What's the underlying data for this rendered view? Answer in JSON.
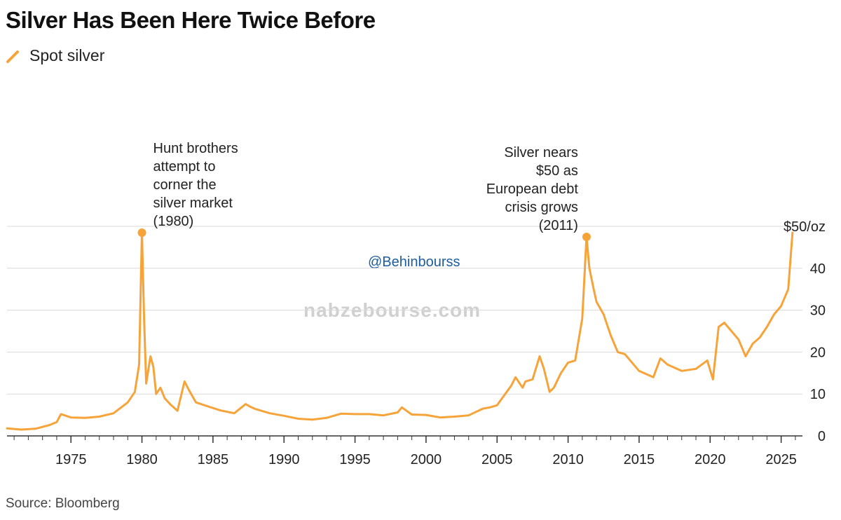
{
  "header": {
    "title": "Silver Has Been Here Twice Before"
  },
  "legend": {
    "label": "Spot silver"
  },
  "source": "Source: Bloomberg",
  "watermark": {
    "handle": "@Behinbourss",
    "site": "nabzebourse.com"
  },
  "colors": {
    "line": "#f6a43a",
    "grid": "#d9d9d9",
    "axis": "#333333"
  },
  "chart_data": {
    "type": "line",
    "series": [
      {
        "name": "Spot silver",
        "x": [
          1970.5,
          1971.5,
          1972.5,
          1973.5,
          1974.0,
          1974.3,
          1975,
          1976,
          1977,
          1978,
          1979,
          1979.5,
          1979.8,
          1980.0,
          1980.15,
          1980.3,
          1980.6,
          1980.8,
          1981.0,
          1981.3,
          1981.6,
          1982,
          1982.5,
          1983.0,
          1983.3,
          1983.8,
          1984.5,
          1985.5,
          1986.5,
          1987.3,
          1987.6,
          1988,
          1989,
          1990,
          1991,
          1992,
          1993,
          1994,
          1995,
          1996,
          1997,
          1998,
          1998.3,
          1999,
          2000,
          2001,
          2002,
          2003,
          2004,
          2004.5,
          2005,
          2006,
          2006.3,
          2006.8,
          2007,
          2007.5,
          2008.0,
          2008.3,
          2008.7,
          2009.0,
          2009.5,
          2010,
          2010.5,
          2011.0,
          2011.3,
          2011.5,
          2011.8,
          2012,
          2012.5,
          2013,
          2013.5,
          2014,
          2015,
          2016,
          2016.5,
          2017,
          2018,
          2019,
          2019.8,
          2020.2,
          2020.6,
          2021,
          2021.5,
          2022,
          2022.5,
          2023,
          2023.5,
          2024,
          2024.5,
          2025,
          2025.5,
          2025.8
        ],
        "y": [
          1.8,
          1.5,
          1.7,
          2.6,
          3.3,
          5.2,
          4.4,
          4.3,
          4.6,
          5.4,
          8.0,
          10.5,
          17.0,
          48.5,
          28.0,
          12.5,
          19.0,
          16.5,
          10.0,
          11.5,
          9.0,
          7.5,
          6.0,
          13.0,
          11.0,
          8.0,
          7.2,
          6.1,
          5.4,
          7.6,
          7.0,
          6.4,
          5.4,
          4.8,
          4.1,
          3.9,
          4.3,
          5.3,
          5.2,
          5.2,
          4.9,
          5.6,
          6.8,
          5.1,
          5.0,
          4.4,
          4.6,
          4.9,
          6.5,
          6.8,
          7.3,
          12.0,
          14.0,
          11.5,
          13.0,
          13.5,
          19.0,
          16.0,
          10.5,
          11.5,
          15.0,
          17.5,
          18.0,
          28.0,
          47.5,
          40.0,
          35.0,
          32.0,
          29.0,
          24.0,
          20.0,
          19.5,
          15.5,
          14.0,
          18.5,
          17.0,
          15.5,
          16.0,
          18.0,
          13.5,
          26.0,
          27.0,
          25.0,
          23.0,
          19.0,
          22.0,
          23.5,
          26.0,
          29.0,
          31.0,
          35.0,
          48.5
        ]
      }
    ],
    "xlim": [
      1970.5,
      2026.5
    ],
    "ylim": [
      0,
      50
    ],
    "x_ticks": [
      "1975",
      "1980",
      "1985",
      "1990",
      "1995",
      "2000",
      "2005",
      "2010",
      "2015",
      "2020",
      "2025"
    ],
    "y_ticks": [
      "0",
      "10",
      "20",
      "30",
      "40",
      "$50/oz"
    ],
    "annotations": [
      {
        "x": 1980.0,
        "y": 48.5,
        "lines": [
          "Hunt brothers",
          "attempt to",
          "corner the",
          "silver market",
          "(1980)"
        ],
        "align": "left"
      },
      {
        "x": 2011.3,
        "y": 47.5,
        "lines": [
          "Silver nears",
          "$50 as",
          "European debt",
          "crisis grows",
          "(2011)"
        ],
        "align": "right"
      }
    ],
    "grid": true
  }
}
